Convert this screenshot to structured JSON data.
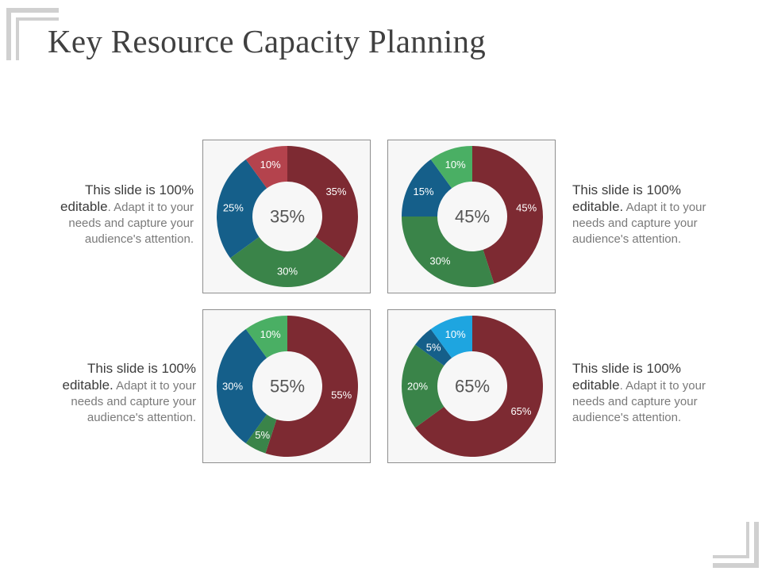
{
  "title": "Key Resource Capacity Planning",
  "descriptions": [
    {
      "lead": "This slide is 100% editable",
      "rest": ". Adapt it to your needs and capture your audience's attention."
    },
    {
      "lead": "This slide is 100% editable.",
      "rest": " Adapt it to your needs and capture your audience's attention."
    },
    {
      "lead": "This slide is 100% editable.",
      "rest": " Adapt it to your needs and capture your audience's attention."
    },
    {
      "lead": "This slide is 100% editable",
      "rest": ". Adapt it to your needs and capture your audience's attention."
    }
  ],
  "chart_data": [
    {
      "type": "donut",
      "center_label": "35%",
      "slices": [
        {
          "label": "35%",
          "value": 35,
          "color": "#7d2a32"
        },
        {
          "label": "30%",
          "value": 30,
          "color": "#3a8449"
        },
        {
          "label": "25%",
          "value": 25,
          "color": "#155f8a"
        },
        {
          "label": "10%",
          "value": 10,
          "color": "#b4434d"
        }
      ]
    },
    {
      "type": "donut",
      "center_label": "45%",
      "slices": [
        {
          "label": "45%",
          "value": 45,
          "color": "#7d2a32"
        },
        {
          "label": "30%",
          "value": 30,
          "color": "#3a8449"
        },
        {
          "label": "15%",
          "value": 15,
          "color": "#155f8a"
        },
        {
          "label": "10%",
          "value": 10,
          "color": "#4aaf64"
        }
      ]
    },
    {
      "type": "donut",
      "center_label": "55%",
      "slices": [
        {
          "label": "55%",
          "value": 55,
          "color": "#7d2a32"
        },
        {
          "label": "5%",
          "value": 5,
          "color": "#3a8449"
        },
        {
          "label": "30%",
          "value": 30,
          "color": "#155f8a"
        },
        {
          "label": "10%",
          "value": 10,
          "color": "#4aaf64"
        }
      ]
    },
    {
      "type": "donut",
      "center_label": "65%",
      "slices": [
        {
          "label": "65%",
          "value": 65,
          "color": "#7d2a32"
        },
        {
          "label": "20%",
          "value": 20,
          "color": "#3a8449"
        },
        {
          "label": "5%",
          "value": 5,
          "color": "#155f8a"
        },
        {
          "label": "10%",
          "value": 10,
          "color": "#1ea5e0"
        }
      ]
    }
  ]
}
